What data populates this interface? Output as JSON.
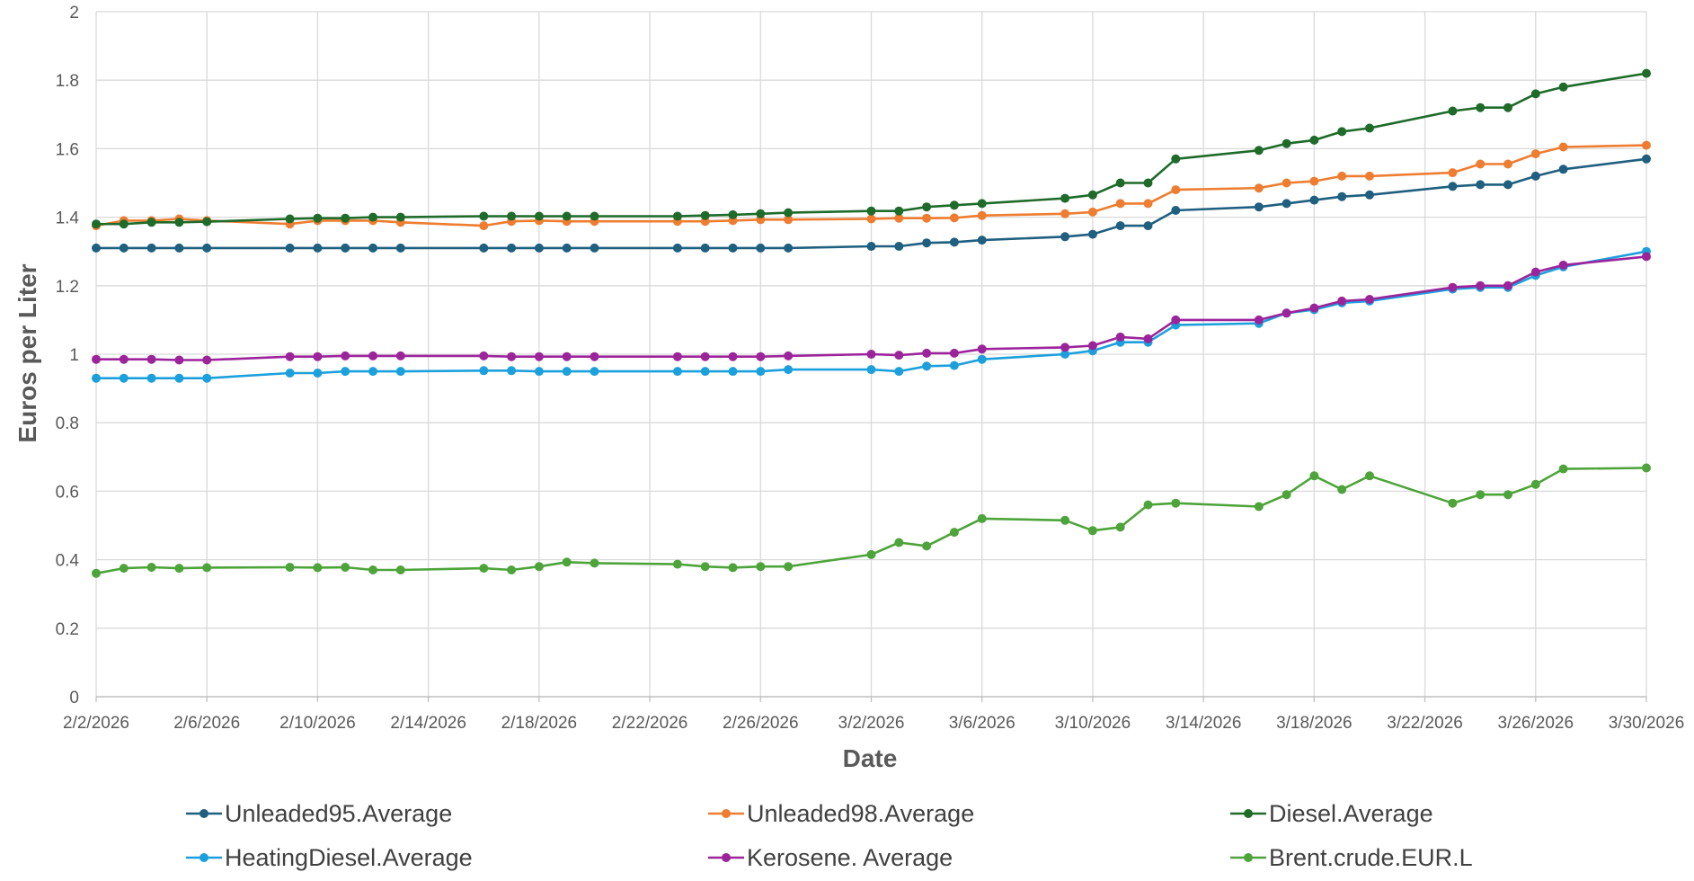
{
  "chart_data": {
    "type": "line",
    "xlabel": "Date",
    "ylabel": "Euros per Liter",
    "ylim": [
      0,
      2
    ],
    "yticks": [
      "0",
      "0.2",
      "0.4",
      "0.6",
      "0.8",
      "1",
      "1.2",
      "1.4",
      "1.6",
      "1.8",
      "2"
    ],
    "xlim": [
      "2026-02-02",
      "2026-03-30"
    ],
    "xticks": [
      "2/2/2026",
      "2/6/2026",
      "2/10/2026",
      "2/14/2026",
      "2/18/2026",
      "2/22/2026",
      "2/26/2026",
      "3/2/2026",
      "3/6/2026",
      "3/10/2026",
      "3/14/2026",
      "3/18/2026",
      "3/22/2026",
      "3/26/2026",
      "3/30/2026"
    ],
    "grid": true,
    "legend_position": "bottom",
    "x": [
      "2026-02-02",
      "2026-02-03",
      "2026-02-04",
      "2026-02-05",
      "2026-02-06",
      "2026-02-09",
      "2026-02-10",
      "2026-02-11",
      "2026-02-12",
      "2026-02-13",
      "2026-02-16",
      "2026-02-17",
      "2026-02-18",
      "2026-02-19",
      "2026-02-20",
      "2026-02-23",
      "2026-02-24",
      "2026-02-25",
      "2026-02-26",
      "2026-02-27",
      "2026-03-02",
      "2026-03-03",
      "2026-03-04",
      "2026-03-05",
      "2026-03-06",
      "2026-03-09",
      "2026-03-10",
      "2026-03-11",
      "2026-03-12",
      "2026-03-13",
      "2026-03-16",
      "2026-03-17",
      "2026-03-18",
      "2026-03-19",
      "2026-03-20",
      "2026-03-23",
      "2026-03-24",
      "2026-03-25",
      "2026-03-26",
      "2026-03-27",
      "2026-03-30"
    ],
    "series": [
      {
        "name": "Unleaded95.Average",
        "color": "#1f5f7f",
        "values": [
          1.31,
          1.31,
          1.31,
          1.31,
          1.31,
          1.31,
          1.31,
          1.31,
          1.31,
          1.31,
          1.31,
          1.31,
          1.31,
          1.31,
          1.31,
          1.31,
          1.31,
          1.31,
          1.31,
          1.31,
          1.315,
          1.315,
          1.325,
          1.327,
          1.333,
          1.343,
          1.35,
          1.375,
          1.375,
          1.42,
          1.43,
          1.44,
          1.45,
          1.46,
          1.465,
          1.49,
          1.495,
          1.495,
          1.52,
          1.54,
          1.57
        ]
      },
      {
        "name": "Unleaded98.Average",
        "color": "#ee7d31",
        "values": [
          1.375,
          1.39,
          1.39,
          1.395,
          1.39,
          1.38,
          1.39,
          1.39,
          1.39,
          1.385,
          1.375,
          1.388,
          1.39,
          1.388,
          1.388,
          1.388,
          1.388,
          1.39,
          1.393,
          1.393,
          1.395,
          1.397,
          1.397,
          1.398,
          1.405,
          1.41,
          1.415,
          1.44,
          1.44,
          1.48,
          1.485,
          1.5,
          1.505,
          1.52,
          1.52,
          1.53,
          1.555,
          1.555,
          1.585,
          1.605,
          1.61
        ]
      },
      {
        "name": "Diesel.Average",
        "color": "#1e6b2a",
        "values": [
          1.38,
          1.38,
          1.385,
          1.385,
          1.387,
          1.395,
          1.397,
          1.397,
          1.4,
          1.4,
          1.403,
          1.403,
          1.403,
          1.403,
          1.403,
          1.403,
          1.405,
          1.407,
          1.41,
          1.413,
          1.418,
          1.418,
          1.43,
          1.435,
          1.44,
          1.455,
          1.465,
          1.5,
          1.5,
          1.57,
          1.595,
          1.615,
          1.625,
          1.65,
          1.66,
          1.71,
          1.72,
          1.72,
          1.76,
          1.78,
          1.82
        ]
      },
      {
        "name": "HeatingDiesel.Average",
        "color": "#1ca0dc",
        "values": [
          0.93,
          0.93,
          0.93,
          0.93,
          0.93,
          0.945,
          0.945,
          0.95,
          0.95,
          0.95,
          0.952,
          0.952,
          0.95,
          0.95,
          0.95,
          0.95,
          0.95,
          0.95,
          0.95,
          0.955,
          0.955,
          0.95,
          0.965,
          0.967,
          0.985,
          1.0,
          1.01,
          1.035,
          1.035,
          1.085,
          1.09,
          1.12,
          1.13,
          1.15,
          1.155,
          1.19,
          1.195,
          1.195,
          1.23,
          1.255,
          1.3
        ]
      },
      {
        "name": "Kerosene. Average",
        "color": "#9c249b",
        "values": [
          0.985,
          0.985,
          0.985,
          0.983,
          0.983,
          0.993,
          0.993,
          0.995,
          0.995,
          0.995,
          0.995,
          0.993,
          0.993,
          0.993,
          0.993,
          0.993,
          0.993,
          0.993,
          0.993,
          0.995,
          1.0,
          0.997,
          1.003,
          1.003,
          1.015,
          1.02,
          1.025,
          1.05,
          1.045,
          1.1,
          1.1,
          1.12,
          1.135,
          1.155,
          1.16,
          1.195,
          1.2,
          1.2,
          1.24,
          1.26,
          1.285
        ]
      },
      {
        "name": "Brent.crude.EUR.L",
        "color": "#4da43a",
        "values": [
          0.36,
          0.375,
          0.378,
          0.375,
          0.377,
          0.378,
          0.377,
          0.378,
          0.37,
          0.37,
          0.375,
          0.37,
          0.38,
          0.393,
          0.39,
          0.387,
          0.38,
          0.377,
          0.38,
          0.38,
          0.415,
          0.45,
          0.44,
          0.48,
          0.52,
          0.515,
          0.485,
          0.495,
          0.56,
          0.565,
          0.555,
          0.59,
          0.645,
          0.605,
          0.645,
          0.565,
          0.59,
          0.59,
          0.62,
          0.665,
          0.668
        ]
      }
    ]
  }
}
